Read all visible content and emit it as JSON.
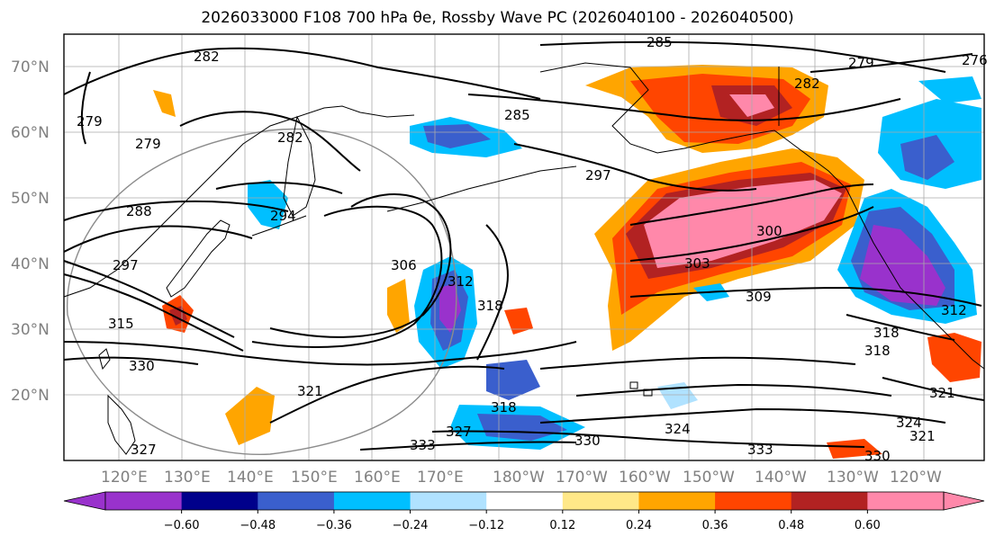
{
  "title": "2026033000 F108 700 hPa θe, Rossby Wave PC (2026040100 - 2026040500)",
  "lat_labels": [
    "70°N",
    "60°N",
    "50°N",
    "40°N",
    "30°N",
    "20°N"
  ],
  "lon_labels": [
    "120°E",
    "130°E",
    "140°E",
    "150°E",
    "160°E",
    "170°E",
    "180°W",
    "170°W",
    "160°W",
    "150°W",
    "140°W",
    "130°W",
    "120°W"
  ],
  "colorbar": {
    "ticks": [
      "−0.60",
      "−0.48",
      "−0.36",
      "−0.24",
      "−0.12",
      "0.12",
      "0.24",
      "0.36",
      "0.48",
      "0.60"
    ],
    "colors": [
      "#9932cc",
      "#00008b",
      "#3a5fcd",
      "#00bfff",
      "#b0e2ff",
      "#ffffff",
      "#ffe888",
      "#ffa500",
      "#ff4500",
      "#b22222",
      "#ff88aa",
      "#ff88aa"
    ]
  },
  "contour_labels": [
    "285",
    "282",
    "279",
    "279",
    "276",
    "282",
    "285",
    "279",
    "282",
    "297",
    "288",
    "294",
    "297",
    "306",
    "312",
    "318",
    "300",
    "303",
    "309",
    "312",
    "315",
    "318",
    "321",
    "324",
    "321",
    "318",
    "318",
    "327",
    "330",
    "333",
    "330",
    "321",
    "324",
    "333",
    "330",
    "327"
  ]
}
